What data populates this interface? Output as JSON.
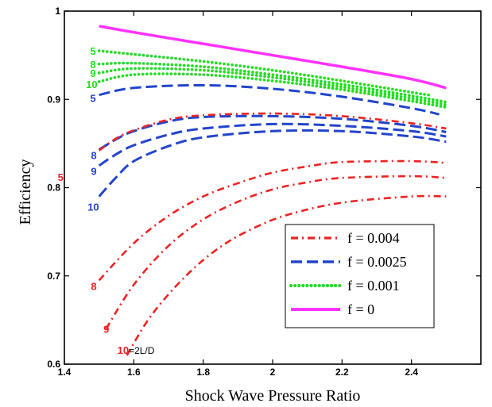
{
  "chart_data": {
    "type": "line",
    "xlabel": "Shock Wave Pressure Ratio",
    "ylabel": "Efficiency",
    "xlim": [
      1.4,
      2.6
    ],
    "ylim": [
      0.6,
      1.0
    ],
    "xticks": [
      "1.4",
      "1.6",
      "1.8",
      "2",
      "2.2",
      "2.4"
    ],
    "yticks": [
      "0.6",
      "0.7",
      "0.8",
      "0.9",
      "1"
    ],
    "legend_position": "bottom-right",
    "grid": false,
    "series": [
      {
        "name": "f = 0",
        "style": "solid",
        "color": "#ff33ff",
        "curve_label": "",
        "x": [
          1.5,
          1.6,
          1.8,
          2.0,
          2.2,
          2.4,
          2.5
        ],
        "y": [
          0.983,
          0.976,
          0.963,
          0.95,
          0.937,
          0.923,
          0.913
        ]
      },
      {
        "name": "f = 0.001",
        "style": "dotted",
        "color": "#22dd22",
        "curve_label": "5",
        "x": [
          1.5,
          1.6,
          1.8,
          2.0,
          2.2,
          2.4,
          2.45
        ],
        "y": [
          0.955,
          0.951,
          0.943,
          0.933,
          0.921,
          0.908,
          0.905
        ]
      },
      {
        "name": "",
        "style": "dotted",
        "color": "#22dd22",
        "curve_label": "8",
        "x": [
          1.5,
          1.6,
          1.8,
          2.0,
          2.2,
          2.4,
          2.5
        ],
        "y": [
          0.94,
          0.941,
          0.937,
          0.928,
          0.917,
          0.904,
          0.897
        ]
      },
      {
        "name": "",
        "style": "dotted",
        "color": "#22dd22",
        "curve_label": "9",
        "x": [
          1.5,
          1.6,
          1.8,
          2.0,
          2.2,
          2.4,
          2.5
        ],
        "y": [
          0.93,
          0.935,
          0.933,
          0.925,
          0.914,
          0.901,
          0.894
        ]
      },
      {
        "name": "",
        "style": "dotted",
        "color": "#22dd22",
        "curve_label": "10",
        "x": [
          1.5,
          1.6,
          1.8,
          2.0,
          2.2,
          2.4,
          2.5
        ],
        "y": [
          0.92,
          0.928,
          0.928,
          0.921,
          0.911,
          0.898,
          0.891
        ]
      },
      {
        "name": "f = 0.0025",
        "style": "dashed",
        "color": "#2244cc",
        "curve_label": "5",
        "x": [
          1.5,
          1.6,
          1.8,
          2.0,
          2.2,
          2.4,
          2.48
        ],
        "y": [
          0.905,
          0.913,
          0.916,
          0.912,
          0.903,
          0.89,
          0.883
        ]
      },
      {
        "name": "",
        "style": "dashed",
        "color": "#2244cc",
        "curve_label": "8",
        "x": [
          1.5,
          1.55,
          1.6,
          1.7,
          1.8,
          2.0,
          2.2,
          2.4,
          2.5
        ],
        "y": [
          0.843,
          0.855,
          0.864,
          0.875,
          0.88,
          0.881,
          0.878,
          0.87,
          0.863
        ]
      },
      {
        "name": "",
        "style": "dashed",
        "color": "#2244cc",
        "curve_label": "9",
        "x": [
          1.5,
          1.55,
          1.6,
          1.7,
          1.8,
          2.0,
          2.2,
          2.4,
          2.5
        ],
        "y": [
          0.825,
          0.838,
          0.848,
          0.86,
          0.867,
          0.872,
          0.87,
          0.864,
          0.858
        ]
      },
      {
        "name": "",
        "style": "dashed",
        "color": "#2244cc",
        "curve_label": "10",
        "x": [
          1.5,
          1.55,
          1.6,
          1.7,
          1.8,
          2.0,
          2.2,
          2.4,
          2.5
        ],
        "y": [
          0.79,
          0.812,
          0.83,
          0.847,
          0.857,
          0.864,
          0.864,
          0.858,
          0.852
        ]
      },
      {
        "name": "f = 0.004",
        "style": "dashdot",
        "color": "#ee2222",
        "curve_label": "5",
        "x": [
          1.5,
          1.55,
          1.6,
          1.7,
          1.8,
          2.0,
          2.2,
          2.4,
          2.5
        ],
        "y": [
          0.842,
          0.856,
          0.865,
          0.877,
          0.882,
          0.884,
          0.881,
          0.873,
          0.867
        ]
      },
      {
        "name": "",
        "style": "dashdot",
        "color": "#ee2222",
        "curve_label": "8",
        "x": [
          1.5,
          1.6,
          1.7,
          1.8,
          1.9,
          2.0,
          2.1,
          2.2,
          2.4,
          2.5
        ],
        "y": [
          0.695,
          0.737,
          0.768,
          0.79,
          0.805,
          0.817,
          0.824,
          0.829,
          0.83,
          0.828
        ]
      },
      {
        "name": "",
        "style": "dashdot",
        "color": "#ee2222",
        "curve_label": "9",
        "x": [
          1.52,
          1.6,
          1.7,
          1.8,
          1.9,
          2.0,
          2.1,
          2.2,
          2.4,
          2.5
        ],
        "y": [
          0.64,
          0.69,
          0.734,
          0.764,
          0.784,
          0.798,
          0.806,
          0.811,
          0.813,
          0.811
        ]
      },
      {
        "name": "",
        "style": "dashdot",
        "color": "#ee2222",
        "curve_label": "10=2L/D",
        "x": [
          1.58,
          1.65,
          1.75,
          1.85,
          1.95,
          2.05,
          2.2,
          2.4,
          2.5
        ],
        "y": [
          0.61,
          0.655,
          0.7,
          0.733,
          0.755,
          0.77,
          0.783,
          0.79,
          0.79
        ]
      }
    ]
  }
}
